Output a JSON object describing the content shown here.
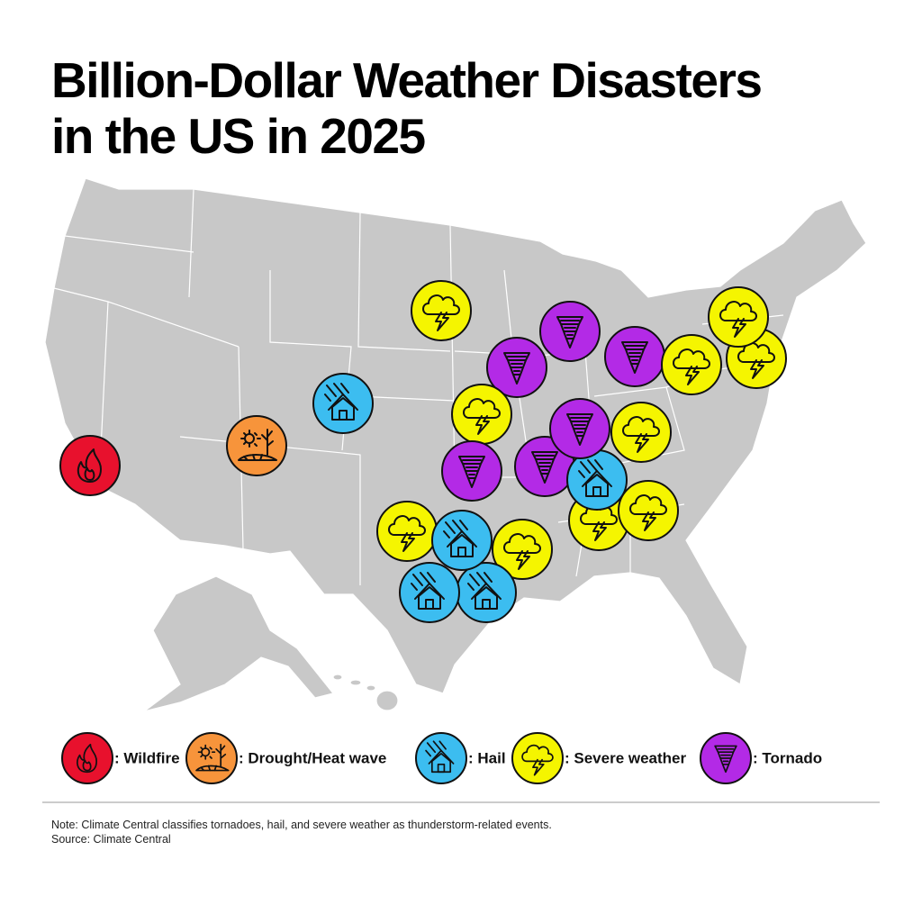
{
  "header": {
    "title": [
      "Billion-Dollar Weather Disasters",
      "in the US in 2025"
    ]
  },
  "legend": [
    {
      "key": "wildfire",
      "label": ": Wildfire",
      "color": "#e8112d"
    },
    {
      "key": "drought",
      "label": ": Drought/Heat wave",
      "color": "#f7943b"
    },
    {
      "key": "hail",
      "label": ": Hail",
      "color": "#3cbdf0"
    },
    {
      "key": "severe",
      "label": ": Severe weather",
      "color": "#f5f500"
    },
    {
      "key": "tornado",
      "label": ": Tornado",
      "color": "#b32ae6"
    }
  ],
  "footer": {
    "note": "Note: Climate Central classifies tornadoes, hail, and severe weather as thunderstorm-related events.",
    "source": "Source: Climate Central"
  }
}
